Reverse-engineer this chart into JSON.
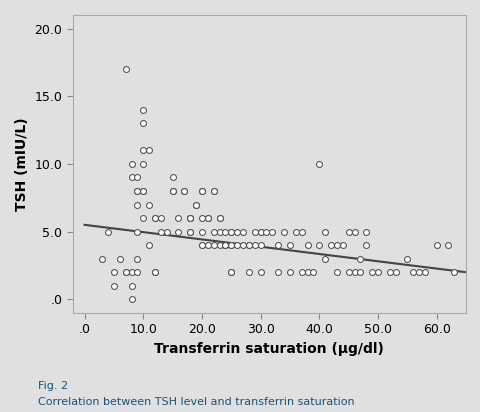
{
  "title": "",
  "xlabel": "Transferrin saturation (µg/dl)",
  "ylabel": "TSH (mIU/L)",
  "fig2_label": "Fig. 2",
  "fig2_caption": "Correlation between TSH level and transferrin saturation",
  "xlim": [
    -2,
    65
  ],
  "ylim": [
    -1,
    21
  ],
  "xticks": [
    0,
    10,
    20,
    30,
    40,
    50,
    60
  ],
  "yticks": [
    0,
    5,
    10,
    15,
    20
  ],
  "xtick_labels": [
    ".0",
    "10.0",
    "20.0",
    "30.0",
    "40.0",
    "50.0",
    "60.0"
  ],
  "ytick_labels": [
    ".0",
    "5.0",
    "10.0",
    "15.0",
    "20.0"
  ],
  "scatter_x": [
    7,
    8,
    8,
    9,
    9,
    9,
    9,
    9,
    10,
    10,
    10,
    10,
    10,
    10,
    11,
    11,
    12,
    12,
    13,
    13,
    14,
    15,
    15,
    15,
    16,
    16,
    17,
    17,
    18,
    18,
    18,
    18,
    18,
    19,
    19,
    20,
    20,
    20,
    20,
    20,
    20,
    21,
    21,
    21,
    22,
    22,
    22,
    22,
    23,
    23,
    23,
    23,
    24,
    24,
    24,
    24,
    25,
    25,
    25,
    25,
    25,
    25,
    26,
    26,
    27,
    27,
    28,
    28,
    28,
    29,
    29,
    30,
    30,
    30,
    30,
    31,
    32,
    33,
    33,
    34,
    35,
    35,
    36,
    37,
    37,
    38,
    38,
    39,
    40,
    40,
    41,
    41,
    42,
    43,
    43,
    44,
    45,
    45,
    46,
    46,
    47,
    47,
    48,
    48,
    49,
    50,
    52,
    53,
    55,
    56,
    57,
    58,
    60,
    62,
    63,
    3,
    4,
    5,
    5,
    6,
    7,
    7,
    8,
    8,
    8,
    9,
    9,
    10,
    11,
    12,
    12
  ],
  "scatter_y": [
    17,
    10,
    9,
    9,
    8,
    8,
    7,
    5,
    14,
    13,
    11,
    10,
    8,
    8,
    11,
    7,
    6,
    6,
    6,
    5,
    5,
    9,
    8,
    8,
    6,
    5,
    8,
    8,
    6,
    6,
    6,
    5,
    5,
    7,
    7,
    8,
    8,
    6,
    5,
    4,
    4,
    6,
    6,
    4,
    8,
    8,
    5,
    4,
    6,
    6,
    5,
    4,
    5,
    4,
    4,
    4,
    5,
    5,
    4,
    4,
    2,
    2,
    5,
    4,
    5,
    4,
    4,
    4,
    2,
    5,
    4,
    5,
    5,
    4,
    2,
    5,
    5,
    4,
    2,
    5,
    4,
    2,
    5,
    5,
    2,
    4,
    2,
    2,
    10,
    4,
    5,
    3,
    4,
    4,
    2,
    4,
    5,
    2,
    5,
    2,
    3,
    2,
    5,
    4,
    2,
    2,
    2,
    2,
    3,
    2,
    2,
    2,
    4,
    4,
    2,
    3,
    5,
    2,
    1,
    3,
    2,
    2,
    2,
    1,
    0,
    3,
    2,
    6,
    4,
    2,
    2
  ],
  "trendline_x": [
    0,
    65
  ],
  "trendline_y": [
    5.5,
    2.0
  ],
  "marker_facecolor": "white",
  "marker_edge_color": "#555555",
  "marker_edge_width": 0.8,
  "marker_size": 18,
  "trendline_color": "#444444",
  "background_color": "#e0e0e0",
  "plot_bg_color": "#e0e0e0"
}
